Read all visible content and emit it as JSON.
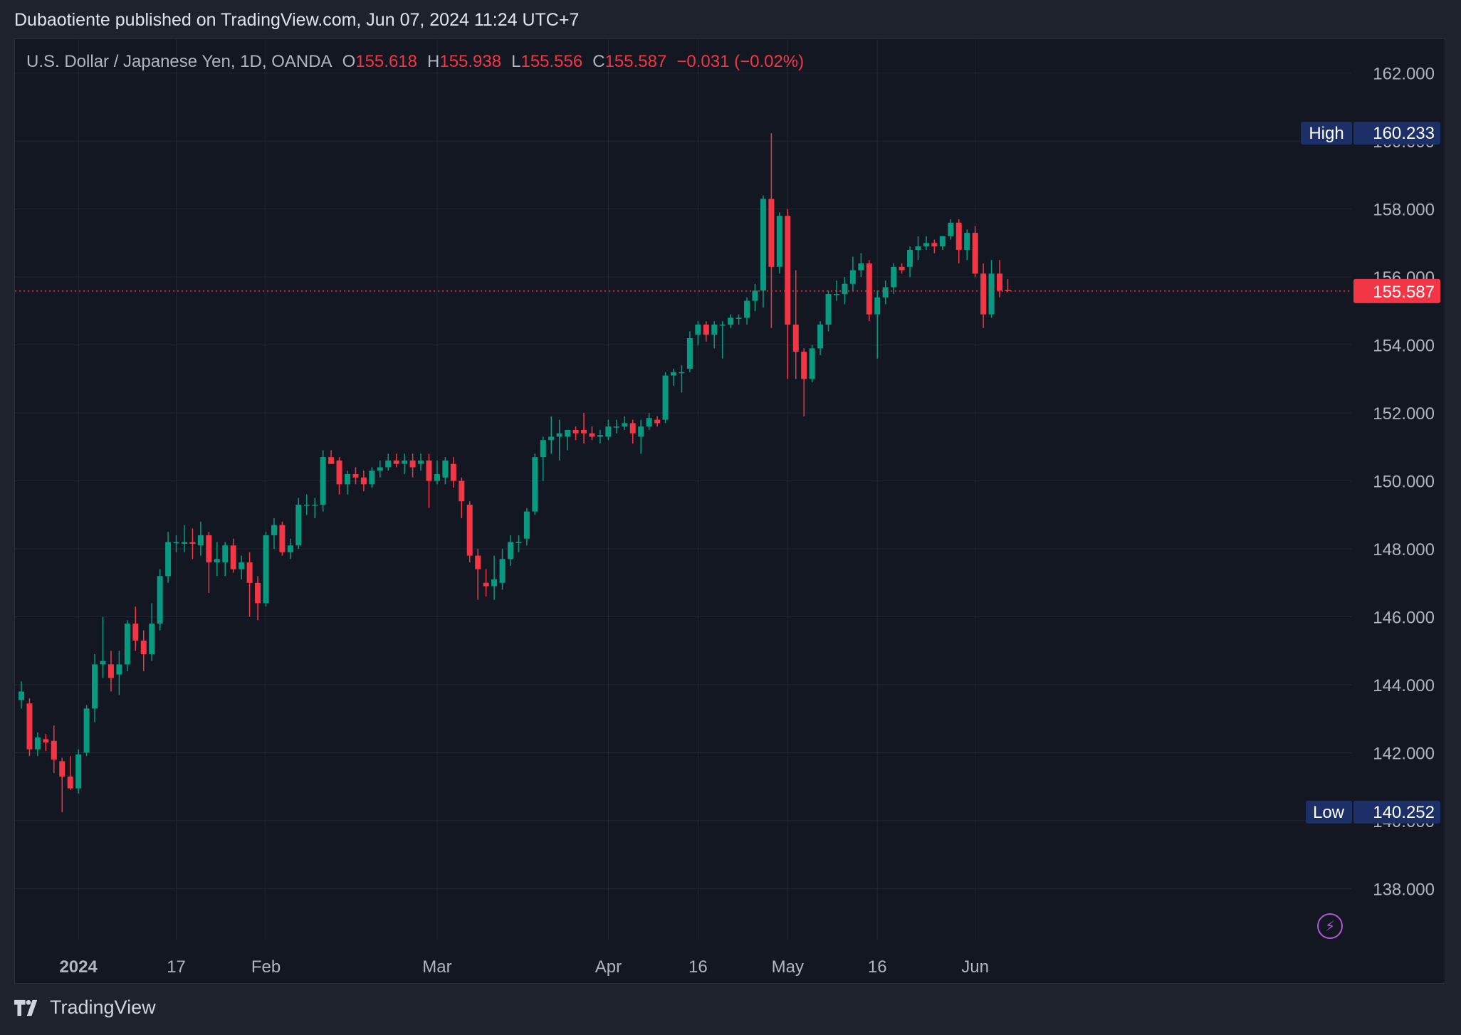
{
  "header": {
    "published": "Dubaotiente published on TradingView.com, Jun 07, 2024 11:24 UTC+7"
  },
  "legend": {
    "symbol": "U.S. Dollar / Japanese Yen, 1D, OANDA",
    "o_label": "O",
    "o_value": "155.618",
    "h_label": "H",
    "h_value": "155.938",
    "l_label": "L",
    "l_value": "155.556",
    "c_label": "C",
    "c_value": "155.587",
    "change": "−0.031 (−0.02%)"
  },
  "markers": {
    "high_label": "High",
    "high_value": "160.233",
    "low_label": "Low",
    "low_value": "140.252",
    "last_value": "155.587"
  },
  "footer": {
    "brand": "TradingView"
  },
  "icons": {
    "flash": "lightning-icon",
    "logo": "tradingview-logo-icon"
  },
  "colors": {
    "up": "#089981",
    "down": "#f23645",
    "background": "#131722",
    "grid": "#232733",
    "text": "#b2b5be",
    "marker_bg": "#1c3067",
    "last_bg": "#f23645"
  },
  "chart_data": {
    "type": "candlestick",
    "symbol": "USDJPY",
    "interval": "1D",
    "ylim": [
      136.5,
      163
    ],
    "y_ticks": [
      "138.000",
      "140.000",
      "142.000",
      "144.000",
      "146.000",
      "148.000",
      "150.000",
      "152.000",
      "154.000",
      "156.000",
      "158.000",
      "160.000",
      "162.000"
    ],
    "x_ticks": [
      {
        "label": "2024",
        "date": "2024-01-01",
        "bold": true
      },
      {
        "label": "17",
        "date": "2024-01-17"
      },
      {
        "label": "Feb",
        "date": "2024-02-01"
      },
      {
        "label": "Mar",
        "date": "2024-03-01"
      },
      {
        "label": "Apr",
        "date": "2024-04-01"
      },
      {
        "label": "16",
        "date": "2024-04-16"
      },
      {
        "label": "May",
        "date": "2024-05-01"
      },
      {
        "label": "16",
        "date": "2024-05-16"
      },
      {
        "label": "Jun",
        "date": "2024-06-01"
      }
    ],
    "grid": true,
    "last_price": 155.587,
    "high": {
      "date": "2024-04-29",
      "value": 160.233
    },
    "low": {
      "date": "2023-12-28",
      "value": 140.252
    },
    "candles": [
      {
        "date": "2023-12-21",
        "o": 143.55,
        "h": 144.1,
        "l": 143.3,
        "c": 143.8
      },
      {
        "date": "2023-12-22",
        "o": 143.45,
        "h": 143.6,
        "l": 141.9,
        "c": 142.1
      },
      {
        "date": "2023-12-25",
        "o": 142.1,
        "h": 142.6,
        "l": 141.9,
        "c": 142.45
      },
      {
        "date": "2023-12-26",
        "o": 142.4,
        "h": 142.55,
        "l": 142.05,
        "c": 142.3
      },
      {
        "date": "2023-12-27",
        "o": 142.35,
        "h": 142.8,
        "l": 141.4,
        "c": 141.8
      },
      {
        "date": "2023-12-28",
        "o": 141.75,
        "h": 141.85,
        "l": 140.25,
        "c": 141.3
      },
      {
        "date": "2023-12-29",
        "o": 141.3,
        "h": 141.9,
        "l": 140.9,
        "c": 140.95
      },
      {
        "date": "2024-01-01",
        "o": 140.95,
        "h": 142.1,
        "l": 140.8,
        "c": 141.95
      },
      {
        "date": "2024-01-02",
        "o": 142.0,
        "h": 143.4,
        "l": 141.9,
        "c": 143.3
      },
      {
        "date": "2024-01-03",
        "o": 143.3,
        "h": 144.9,
        "l": 142.9,
        "c": 144.6
      },
      {
        "date": "2024-01-04",
        "o": 144.6,
        "h": 146.0,
        "l": 144.2,
        "c": 144.7
      },
      {
        "date": "2024-01-05",
        "o": 144.6,
        "h": 145.0,
        "l": 143.8,
        "c": 144.2
      },
      {
        "date": "2024-01-08",
        "o": 144.3,
        "h": 145.0,
        "l": 143.7,
        "c": 144.6
      },
      {
        "date": "2024-01-09",
        "o": 144.6,
        "h": 145.9,
        "l": 144.4,
        "c": 145.8
      },
      {
        "date": "2024-01-10",
        "o": 145.8,
        "h": 146.3,
        "l": 145.0,
        "c": 145.3
      },
      {
        "date": "2024-01-11",
        "o": 145.3,
        "h": 145.6,
        "l": 144.4,
        "c": 144.9
      },
      {
        "date": "2024-01-12",
        "o": 144.9,
        "h": 146.4,
        "l": 144.7,
        "c": 145.8
      },
      {
        "date": "2024-01-15",
        "o": 145.8,
        "h": 147.4,
        "l": 145.6,
        "c": 147.2
      },
      {
        "date": "2024-01-16",
        "o": 147.2,
        "h": 148.5,
        "l": 147.0,
        "c": 148.2
      },
      {
        "date": "2024-01-17",
        "o": 148.2,
        "h": 148.4,
        "l": 147.9,
        "c": 148.2
      },
      {
        "date": "2024-01-18",
        "o": 148.15,
        "h": 148.7,
        "l": 147.9,
        "c": 148.2
      },
      {
        "date": "2024-01-19",
        "o": 148.2,
        "h": 148.6,
        "l": 147.7,
        "c": 148.15
      },
      {
        "date": "2024-01-22",
        "o": 148.1,
        "h": 148.8,
        "l": 147.8,
        "c": 148.4
      },
      {
        "date": "2024-01-23",
        "o": 148.4,
        "h": 148.5,
        "l": 146.7,
        "c": 147.6
      },
      {
        "date": "2024-01-24",
        "o": 147.6,
        "h": 148.2,
        "l": 147.2,
        "c": 147.7
      },
      {
        "date": "2024-01-25",
        "o": 147.6,
        "h": 148.2,
        "l": 147.2,
        "c": 148.1
      },
      {
        "date": "2024-01-26",
        "o": 148.1,
        "h": 148.3,
        "l": 147.3,
        "c": 147.4
      },
      {
        "date": "2024-01-29",
        "o": 147.4,
        "h": 147.8,
        "l": 147.1,
        "c": 147.6
      },
      {
        "date": "2024-01-30",
        "o": 147.6,
        "h": 147.9,
        "l": 146.0,
        "c": 147.0
      },
      {
        "date": "2024-01-31",
        "o": 147.0,
        "h": 147.2,
        "l": 145.9,
        "c": 146.4
      },
      {
        "date": "2024-02-01",
        "o": 146.4,
        "h": 148.5,
        "l": 146.3,
        "c": 148.4
      },
      {
        "date": "2024-02-02",
        "o": 148.4,
        "h": 148.9,
        "l": 148.0,
        "c": 148.7
      },
      {
        "date": "2024-02-05",
        "o": 148.7,
        "h": 148.8,
        "l": 147.8,
        "c": 147.9
      },
      {
        "date": "2024-02-06",
        "o": 147.9,
        "h": 148.3,
        "l": 147.7,
        "c": 148.1
      },
      {
        "date": "2024-02-07",
        "o": 148.1,
        "h": 149.5,
        "l": 148.0,
        "c": 149.3
      },
      {
        "date": "2024-02-08",
        "o": 149.3,
        "h": 149.6,
        "l": 149.0,
        "c": 149.3
      },
      {
        "date": "2024-02-09",
        "o": 149.3,
        "h": 149.5,
        "l": 148.9,
        "c": 149.3
      },
      {
        "date": "2024-02-12",
        "o": 149.3,
        "h": 150.9,
        "l": 149.1,
        "c": 150.7
      },
      {
        "date": "2024-02-13",
        "o": 150.7,
        "h": 150.9,
        "l": 150.5,
        "c": 150.5
      },
      {
        "date": "2024-02-14",
        "o": 150.6,
        "h": 150.7,
        "l": 149.6,
        "c": 149.9
      },
      {
        "date": "2024-02-15",
        "o": 149.9,
        "h": 150.3,
        "l": 149.6,
        "c": 150.2
      },
      {
        "date": "2024-02-16",
        "o": 150.2,
        "h": 150.4,
        "l": 149.9,
        "c": 150.1
      },
      {
        "date": "2024-02-19",
        "o": 150.1,
        "h": 150.3,
        "l": 149.7,
        "c": 149.9
      },
      {
        "date": "2024-02-20",
        "o": 149.9,
        "h": 150.4,
        "l": 149.8,
        "c": 150.3
      },
      {
        "date": "2024-02-21",
        "o": 150.3,
        "h": 150.6,
        "l": 150.1,
        "c": 150.4
      },
      {
        "date": "2024-02-22",
        "o": 150.4,
        "h": 150.8,
        "l": 150.3,
        "c": 150.6
      },
      {
        "date": "2024-02-23",
        "o": 150.6,
        "h": 150.8,
        "l": 150.4,
        "c": 150.5
      },
      {
        "date": "2024-02-26",
        "o": 150.5,
        "h": 150.8,
        "l": 150.2,
        "c": 150.6
      },
      {
        "date": "2024-02-27",
        "o": 150.6,
        "h": 150.8,
        "l": 150.1,
        "c": 150.4
      },
      {
        "date": "2024-02-28",
        "o": 150.5,
        "h": 150.8,
        "l": 150.3,
        "c": 150.6
      },
      {
        "date": "2024-02-29",
        "o": 150.6,
        "h": 150.8,
        "l": 149.2,
        "c": 150.0
      },
      {
        "date": "2024-03-01",
        "o": 150.0,
        "h": 150.6,
        "l": 149.9,
        "c": 150.2
      },
      {
        "date": "2024-03-04",
        "o": 150.1,
        "h": 150.7,
        "l": 149.9,
        "c": 150.6
      },
      {
        "date": "2024-03-05",
        "o": 150.5,
        "h": 150.7,
        "l": 149.8,
        "c": 150.0
      },
      {
        "date": "2024-03-06",
        "o": 150.0,
        "h": 150.1,
        "l": 148.9,
        "c": 149.4
      },
      {
        "date": "2024-03-07",
        "o": 149.3,
        "h": 149.4,
        "l": 147.6,
        "c": 147.8
      },
      {
        "date": "2024-03-08",
        "o": 147.8,
        "h": 148.0,
        "l": 146.5,
        "c": 147.4
      },
      {
        "date": "2024-03-11",
        "o": 147.0,
        "h": 147.4,
        "l": 146.6,
        "c": 146.9
      },
      {
        "date": "2024-03-12",
        "o": 146.9,
        "h": 147.8,
        "l": 146.5,
        "c": 147.1
      },
      {
        "date": "2024-03-13",
        "o": 147.0,
        "h": 148.0,
        "l": 146.8,
        "c": 147.7
      },
      {
        "date": "2024-03-14",
        "o": 147.7,
        "h": 148.4,
        "l": 147.5,
        "c": 148.2
      },
      {
        "date": "2024-03-15",
        "o": 148.2,
        "h": 148.4,
        "l": 147.9,
        "c": 148.2
      },
      {
        "date": "2024-03-18",
        "o": 148.3,
        "h": 149.2,
        "l": 148.1,
        "c": 149.1
      },
      {
        "date": "2024-03-19",
        "o": 149.1,
        "h": 150.8,
        "l": 149.0,
        "c": 150.7
      },
      {
        "date": "2024-03-20",
        "o": 150.7,
        "h": 151.3,
        "l": 150.0,
        "c": 151.2
      },
      {
        "date": "2024-03-21",
        "o": 151.2,
        "h": 151.9,
        "l": 150.8,
        "c": 151.3
      },
      {
        "date": "2024-03-22",
        "o": 151.3,
        "h": 151.8,
        "l": 150.6,
        "c": 151.4
      },
      {
        "date": "2024-03-25",
        "o": 151.3,
        "h": 151.5,
        "l": 150.9,
        "c": 151.5
      },
      {
        "date": "2024-03-26",
        "o": 151.5,
        "h": 151.6,
        "l": 151.2,
        "c": 151.4
      },
      {
        "date": "2024-03-27",
        "o": 151.5,
        "h": 152.0,
        "l": 151.1,
        "c": 151.4
      },
      {
        "date": "2024-03-28",
        "o": 151.4,
        "h": 151.6,
        "l": 151.2,
        "c": 151.3
      },
      {
        "date": "2024-03-29",
        "o": 151.3,
        "h": 151.5,
        "l": 151.1,
        "c": 151.35
      },
      {
        "date": "2024-04-01",
        "o": 151.3,
        "h": 151.8,
        "l": 151.2,
        "c": 151.6
      },
      {
        "date": "2024-04-02",
        "o": 151.6,
        "h": 151.8,
        "l": 151.4,
        "c": 151.6
      },
      {
        "date": "2024-04-03",
        "o": 151.6,
        "h": 151.9,
        "l": 151.5,
        "c": 151.7
      },
      {
        "date": "2024-04-04",
        "o": 151.7,
        "h": 151.8,
        "l": 151.1,
        "c": 151.4
      },
      {
        "date": "2024-04-05",
        "o": 151.3,
        "h": 151.8,
        "l": 150.8,
        "c": 151.6
      },
      {
        "date": "2024-04-08",
        "o": 151.6,
        "h": 152.0,
        "l": 151.5,
        "c": 151.85
      },
      {
        "date": "2024-04-09",
        "o": 151.8,
        "h": 151.9,
        "l": 151.6,
        "c": 151.7
      },
      {
        "date": "2024-04-10",
        "o": 151.8,
        "h": 153.2,
        "l": 151.7,
        "c": 153.1
      },
      {
        "date": "2024-04-11",
        "o": 153.1,
        "h": 153.3,
        "l": 152.8,
        "c": 153.2
      },
      {
        "date": "2024-04-12",
        "o": 153.2,
        "h": 153.4,
        "l": 152.6,
        "c": 153.2
      },
      {
        "date": "2024-04-15",
        "o": 153.3,
        "h": 154.4,
        "l": 153.2,
        "c": 154.2
      },
      {
        "date": "2024-04-16",
        "o": 154.3,
        "h": 154.7,
        "l": 154.0,
        "c": 154.6
      },
      {
        "date": "2024-04-17",
        "o": 154.6,
        "h": 154.7,
        "l": 154.1,
        "c": 154.3
      },
      {
        "date": "2024-04-18",
        "o": 154.3,
        "h": 154.7,
        "l": 153.9,
        "c": 154.6
      },
      {
        "date": "2024-04-19",
        "o": 154.6,
        "h": 154.7,
        "l": 153.6,
        "c": 154.6
      },
      {
        "date": "2024-04-22",
        "o": 154.6,
        "h": 154.9,
        "l": 154.5,
        "c": 154.8
      },
      {
        "date": "2024-04-23",
        "o": 154.8,
        "h": 154.9,
        "l": 154.6,
        "c": 154.8
      },
      {
        "date": "2024-04-24",
        "o": 154.8,
        "h": 155.4,
        "l": 154.6,
        "c": 155.3
      },
      {
        "date": "2024-04-25",
        "o": 155.3,
        "h": 155.8,
        "l": 155.0,
        "c": 155.6
      },
      {
        "date": "2024-04-26",
        "o": 155.6,
        "h": 158.4,
        "l": 155.1,
        "c": 158.3
      },
      {
        "date": "2024-04-29",
        "o": 158.3,
        "h": 160.233,
        "l": 154.5,
        "c": 156.3
      },
      {
        "date": "2024-04-30",
        "o": 156.3,
        "h": 157.9,
        "l": 156.1,
        "c": 157.8
      },
      {
        "date": "2024-05-01",
        "o": 157.8,
        "h": 158.0,
        "l": 153.0,
        "c": 154.6
      },
      {
        "date": "2024-05-02",
        "o": 154.6,
        "h": 156.2,
        "l": 153.0,
        "c": 153.8
      },
      {
        "date": "2024-05-03",
        "o": 153.8,
        "h": 153.9,
        "l": 151.9,
        "c": 153.0
      },
      {
        "date": "2024-05-06",
        "o": 153.0,
        "h": 154.0,
        "l": 152.9,
        "c": 153.9
      },
      {
        "date": "2024-05-07",
        "o": 153.9,
        "h": 154.7,
        "l": 153.7,
        "c": 154.6
      },
      {
        "date": "2024-05-08",
        "o": 154.6,
        "h": 155.6,
        "l": 154.4,
        "c": 155.5
      },
      {
        "date": "2024-05-09",
        "o": 155.5,
        "h": 155.9,
        "l": 155.3,
        "c": 155.5
      },
      {
        "date": "2024-05-10",
        "o": 155.5,
        "h": 156.0,
        "l": 155.2,
        "c": 155.8
      },
      {
        "date": "2024-05-13",
        "o": 155.8,
        "h": 156.6,
        "l": 155.6,
        "c": 156.2
      },
      {
        "date": "2024-05-14",
        "o": 156.2,
        "h": 156.7,
        "l": 156.0,
        "c": 156.4
      },
      {
        "date": "2024-05-15",
        "o": 156.4,
        "h": 156.5,
        "l": 154.7,
        "c": 154.9
      },
      {
        "date": "2024-05-16",
        "o": 154.9,
        "h": 155.6,
        "l": 153.6,
        "c": 155.4
      },
      {
        "date": "2024-05-17",
        "o": 155.4,
        "h": 155.9,
        "l": 155.2,
        "c": 155.7
      },
      {
        "date": "2024-05-20",
        "o": 155.7,
        "h": 156.4,
        "l": 155.5,
        "c": 156.3
      },
      {
        "date": "2024-05-21",
        "o": 156.3,
        "h": 156.4,
        "l": 156.1,
        "c": 156.2
      },
      {
        "date": "2024-05-22",
        "o": 156.3,
        "h": 156.9,
        "l": 156.0,
        "c": 156.8
      },
      {
        "date": "2024-05-23",
        "o": 156.8,
        "h": 157.2,
        "l": 156.5,
        "c": 156.9
      },
      {
        "date": "2024-05-24",
        "o": 156.9,
        "h": 157.2,
        "l": 156.8,
        "c": 157.0
      },
      {
        "date": "2024-05-27",
        "o": 157.0,
        "h": 157.1,
        "l": 156.7,
        "c": 156.9
      },
      {
        "date": "2024-05-28",
        "o": 156.9,
        "h": 157.2,
        "l": 156.8,
        "c": 157.2
      },
      {
        "date": "2024-05-29",
        "o": 157.2,
        "h": 157.7,
        "l": 157.1,
        "c": 157.6
      },
      {
        "date": "2024-05-30",
        "o": 157.6,
        "h": 157.7,
        "l": 156.4,
        "c": 156.8
      },
      {
        "date": "2024-05-31",
        "o": 156.8,
        "h": 157.4,
        "l": 156.5,
        "c": 157.3
      },
      {
        "date": "2024-06-03",
        "o": 157.3,
        "h": 157.5,
        "l": 156.0,
        "c": 156.1
      },
      {
        "date": "2024-06-04",
        "o": 156.1,
        "h": 156.4,
        "l": 154.5,
        "c": 154.9
      },
      {
        "date": "2024-06-05",
        "o": 154.9,
        "h": 156.5,
        "l": 154.8,
        "c": 156.1
      },
      {
        "date": "2024-06-06",
        "o": 156.1,
        "h": 156.5,
        "l": 155.4,
        "c": 155.6
      },
      {
        "date": "2024-06-07",
        "o": 155.618,
        "h": 155.938,
        "l": 155.556,
        "c": 155.587
      }
    ]
  }
}
